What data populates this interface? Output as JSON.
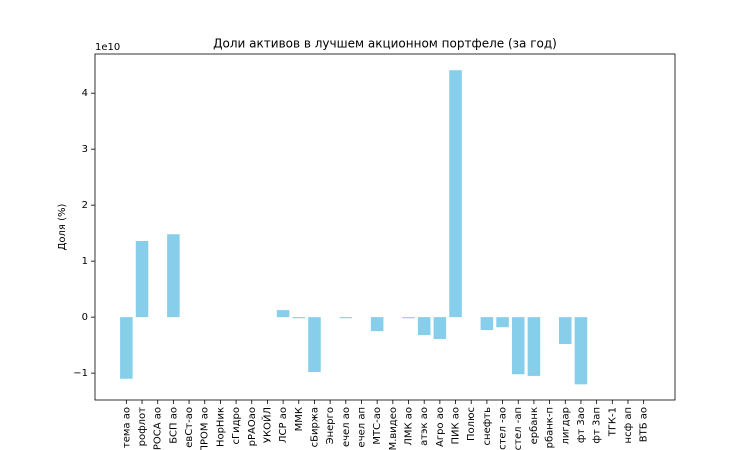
{
  "chart_data": {
    "type": "bar",
    "title": "Доли активов в лучшем акционном портфеле (за год)",
    "y_label": "Доля (%)",
    "y_offset_label": "1e10",
    "categories": [
      "тема ао",
      "рофлот",
      "РОСА ао",
      "БСП ао",
      "евСт-ао",
      "ПРОМ ао",
      "НорНик",
      "сГидро",
      "рРАОао",
      "УКОЙЛ",
      "ЛСР ао",
      "ММК",
      "сБиржа",
      "Энерго",
      "ечел ао",
      "ечел ап",
      "МТС-ао",
      "М.видео",
      "ЛМК ао",
      "атэк ао",
      "Агро ао",
      "ПИК ао",
      "Полюс",
      "снефть",
      "стел -ао",
      "стел -ап",
      "ербанк",
      "рбанк-п",
      "лигдар",
      "фт 3ао",
      "фт 3ап",
      "ТГК-1",
      "нсф ап",
      "ВТБ ао"
    ],
    "values": [
      -11000000000,
      13600000000,
      0,
      14800000000,
      0,
      0,
      0,
      0,
      0,
      0,
      1250000000,
      -200000000,
      -9800000000,
      0,
      -200000000,
      0,
      -2500000000,
      0,
      -200000000,
      -3200000000,
      -3900000000,
      44100000000,
      0,
      -2300000000,
      -1800000000,
      -10200000000,
      -10500000000,
      0,
      -4800000000,
      -12000000000,
      0,
      0,
      0,
      0
    ],
    "color": "#87ceeb",
    "ylim": [
      -14800000000,
      47000000000
    ],
    "yticks": [
      {
        "value": -10000000000,
        "label": "−1"
      },
      0,
      {
        "value": 10000000000,
        "label": "1"
      },
      {
        "value": 20000000000,
        "label": "2"
      },
      {
        "value": 30000000000,
        "label": "3"
      },
      {
        "value": 40000000000,
        "label": "4"
      }
    ],
    "grid": false
  }
}
